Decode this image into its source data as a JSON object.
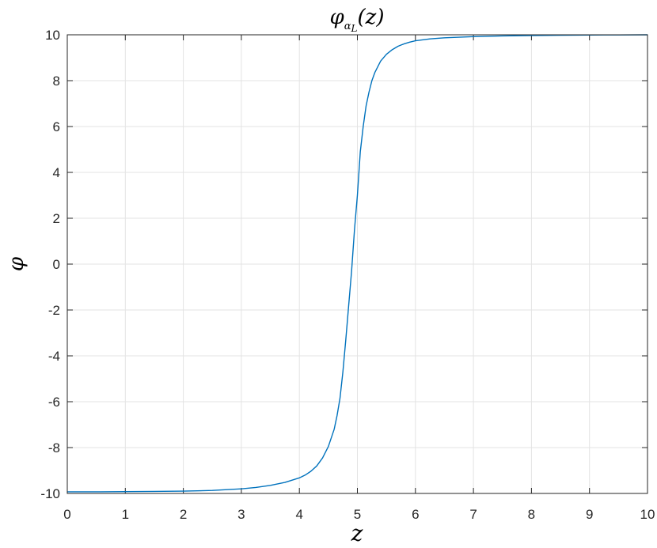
{
  "chart_data": {
    "type": "line",
    "title": {
      "base": "φ",
      "subscript": "α",
      "sub_subscript": "L",
      "suffix": "(z)"
    },
    "xlabel": "z",
    "ylabel": "φ",
    "xlim": [
      0,
      10
    ],
    "ylim": [
      -10,
      10
    ],
    "xticks": [
      "0",
      "1",
      "2",
      "3",
      "4",
      "5",
      "6",
      "7",
      "8",
      "9",
      "10"
    ],
    "yticks": [
      "-10",
      "-8",
      "-6",
      "-4",
      "-2",
      "0",
      "2",
      "4",
      "6",
      "8",
      "10"
    ],
    "grid": true,
    "line_color": "#0072BD",
    "series": [
      {
        "x": [
          0,
          0.5,
          1,
          1.5,
          2,
          2.5,
          3,
          3.25,
          3.5,
          3.75,
          4,
          4.1,
          4.2,
          4.3,
          4.4,
          4.5,
          4.6,
          4.65,
          4.7,
          4.75,
          4.8,
          4.85,
          4.9,
          4.95,
          5,
          5.05,
          5.1,
          5.15,
          5.2,
          5.25,
          5.3,
          5.35,
          5.4,
          5.5,
          5.6,
          5.7,
          5.8,
          5.9,
          6,
          6.25,
          6.5,
          7,
          7.5,
          8,
          8.5,
          9,
          9.5,
          10
        ],
        "y": [
          -9.93,
          -9.93,
          -9.92,
          -9.91,
          -9.9,
          -9.87,
          -9.8,
          -9.74,
          -9.65,
          -9.52,
          -9.32,
          -9.2,
          -9.03,
          -8.8,
          -8.45,
          -7.95,
          -7.2,
          -6.6,
          -5.85,
          -4.7,
          -3.3,
          -1.8,
          -0.3,
          1.5,
          3.0,
          4.9,
          6.0,
          6.9,
          7.5,
          8.0,
          8.35,
          8.6,
          8.85,
          9.15,
          9.35,
          9.5,
          9.6,
          9.68,
          9.74,
          9.82,
          9.87,
          9.92,
          9.95,
          9.97,
          9.98,
          9.99,
          9.995,
          10.0
        ]
      }
    ]
  }
}
